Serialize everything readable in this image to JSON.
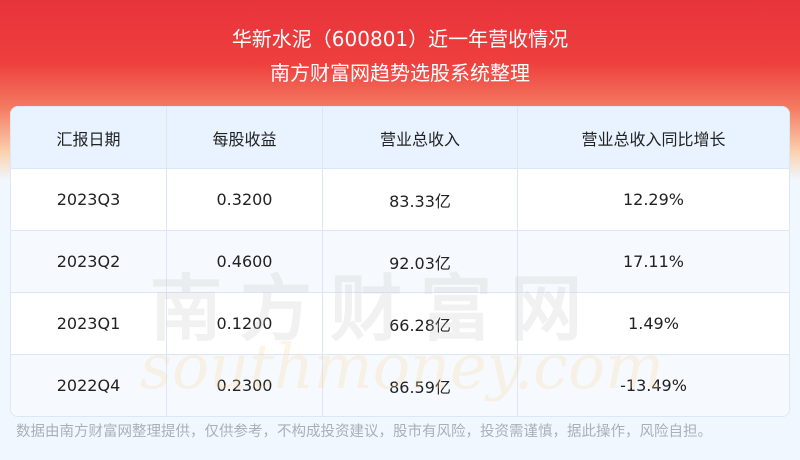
{
  "header": {
    "title": "华新水泥（600801）近一年营收情况",
    "subtitle": "南方财富网趋势选股系统整理"
  },
  "table": {
    "columns": [
      "汇报日期",
      "每股收益",
      "营业总收入",
      "营业总收入同比增长"
    ],
    "rows": [
      [
        "2023Q3",
        "0.3200",
        "83.33亿",
        "12.29%"
      ],
      [
        "2023Q2",
        "0.4600",
        "92.03亿",
        "17.11%"
      ],
      [
        "2023Q1",
        "0.1200",
        "66.28亿",
        "1.49%"
      ],
      [
        "2022Q4",
        "0.2300",
        "86.59亿",
        "-13.49%"
      ]
    ]
  },
  "watermark": {
    "cn": "南方财富网",
    "en": "southmoney.com"
  },
  "footer": "数据由南方财富网整理提供，仅供参考，不构成投资建议，股市有风险，投资需谨慎，据此操作，风险自担。"
}
